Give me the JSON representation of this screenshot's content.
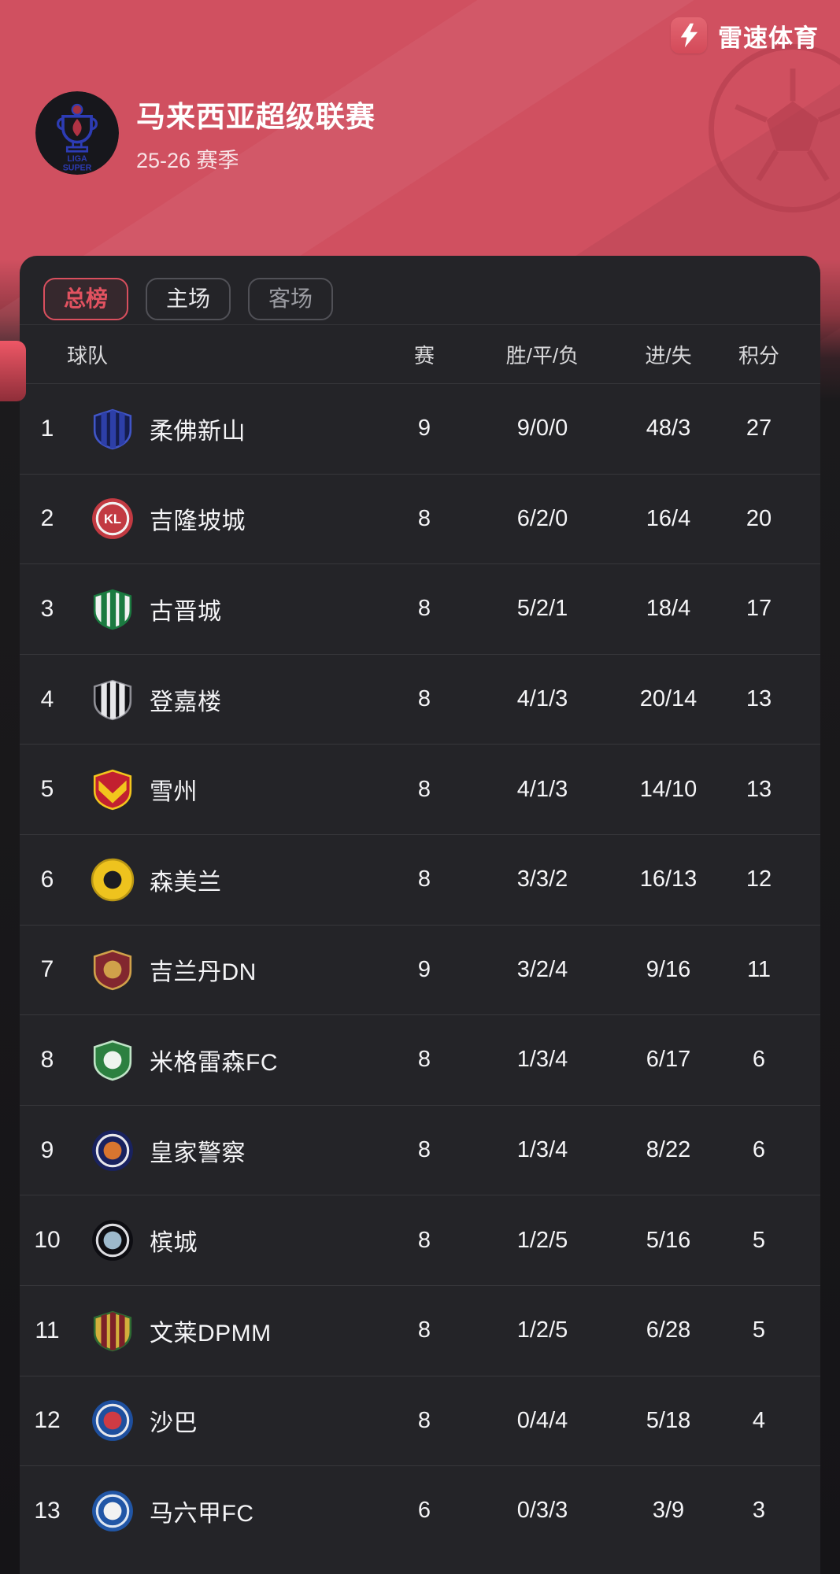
{
  "brand": {
    "name": "雷速体育"
  },
  "league": {
    "title": "马来西亚超级联赛",
    "season": "25-26 赛季"
  },
  "tabs": [
    {
      "key": "overall",
      "label": "总榜",
      "active": true
    },
    {
      "key": "home",
      "label": "主场",
      "active": false
    },
    {
      "key": "away",
      "label": "客场",
      "active": false
    }
  ],
  "table": {
    "headers": {
      "team": "球队",
      "played": "赛",
      "wdl": "胜/平/负",
      "goals": "进/失",
      "points": "积分"
    },
    "rows": [
      {
        "rank": "1",
        "team": "柔佛新山",
        "played": "9",
        "wdl": "9/0/0",
        "goals": "48/3",
        "points": "27",
        "logo": {
          "type": "shield",
          "bg": "#151d4e",
          "border": "#4055c6",
          "stripes": "#2d3fa8"
        }
      },
      {
        "rank": "2",
        "team": "吉隆坡城",
        "played": "8",
        "wdl": "6/2/0",
        "goals": "16/4",
        "points": "20",
        "logo": {
          "type": "circle",
          "bg": "#c23a42",
          "ring": "#f2f2f2",
          "text": "KL"
        }
      },
      {
        "rank": "3",
        "team": "古晋城",
        "played": "8",
        "wdl": "5/2/1",
        "goals": "18/4",
        "points": "17",
        "logo": {
          "type": "shield",
          "bg": "#f2f2f2",
          "border": "#1b7a40",
          "stripes": "#1b7a40"
        }
      },
      {
        "rank": "4",
        "team": "登嘉楼",
        "played": "8",
        "wdl": "4/1/3",
        "goals": "20/14",
        "points": "13",
        "logo": {
          "type": "shield",
          "bg": "#121216",
          "border": "#8f8f96",
          "stripes": "#e6e6e9"
        }
      },
      {
        "rank": "5",
        "team": "雪州",
        "played": "8",
        "wdl": "4/1/3",
        "goals": "14/10",
        "points": "13",
        "logo": {
          "type": "shield",
          "bg": "#c22030",
          "border": "#f2c51d",
          "chevron": "#f2c51d"
        }
      },
      {
        "rank": "6",
        "team": "森美兰",
        "played": "8",
        "wdl": "3/3/2",
        "goals": "16/13",
        "points": "12",
        "logo": {
          "type": "circle",
          "bg": "#eec31e",
          "border": "#b99614",
          "dot": "#1c1c22"
        }
      },
      {
        "rank": "7",
        "team": "吉兰丹DN",
        "played": "9",
        "wdl": "3/2/4",
        "goals": "9/16",
        "points": "11",
        "logo": {
          "type": "shield",
          "bg": "#82272f",
          "border": "#d0a14a",
          "dot": "#d0a14a"
        }
      },
      {
        "rank": "8",
        "team": "米格雷森FC",
        "played": "8",
        "wdl": "1/3/4",
        "goals": "6/17",
        "points": "6",
        "logo": {
          "type": "shield",
          "bg": "#2c8040",
          "border": "#bfe3c6",
          "dot": "#eef4ee"
        }
      },
      {
        "rank": "9",
        "team": "皇家警察",
        "played": "8",
        "wdl": "1/3/4",
        "goals": "8/22",
        "points": "6",
        "logo": {
          "type": "circle",
          "bg": "#19225f",
          "ring": "#e8e8ec",
          "dot": "#d8752f"
        }
      },
      {
        "rank": "10",
        "team": "槟城",
        "played": "8",
        "wdl": "1/2/5",
        "goals": "5/16",
        "points": "5",
        "logo": {
          "type": "circle",
          "bg": "#0d0d12",
          "ring": "#dcdce0",
          "dot": "#9db9cc"
        }
      },
      {
        "rank": "11",
        "team": "文莱DPMM",
        "played": "8",
        "wdl": "1/2/5",
        "goals": "6/28",
        "points": "5",
        "logo": {
          "type": "shield",
          "bg": "#d3af3c",
          "border": "#2d6b33",
          "stripes": "#7c2128"
        }
      },
      {
        "rank": "12",
        "team": "沙巴",
        "played": "8",
        "wdl": "0/4/4",
        "goals": "5/18",
        "points": "4",
        "logo": {
          "type": "circle",
          "bg": "#1e4f9e",
          "ring": "#e8e8ec",
          "dot": "#cf3b44"
        }
      },
      {
        "rank": "13",
        "team": "马六甲FC",
        "played": "6",
        "wdl": "0/3/3",
        "goals": "3/9",
        "points": "3",
        "logo": {
          "type": "circle",
          "bg": "#2156a6",
          "ring": "#dfe7f2",
          "dot": "#f2f2f2"
        }
      }
    ]
  },
  "colors": {
    "accent": "#e15260",
    "background_red": "#d05060",
    "panel": "#242428",
    "separator": "#37373b",
    "text_primary": "#f5f5f7",
    "text_muted": "#9b9ca2"
  }
}
